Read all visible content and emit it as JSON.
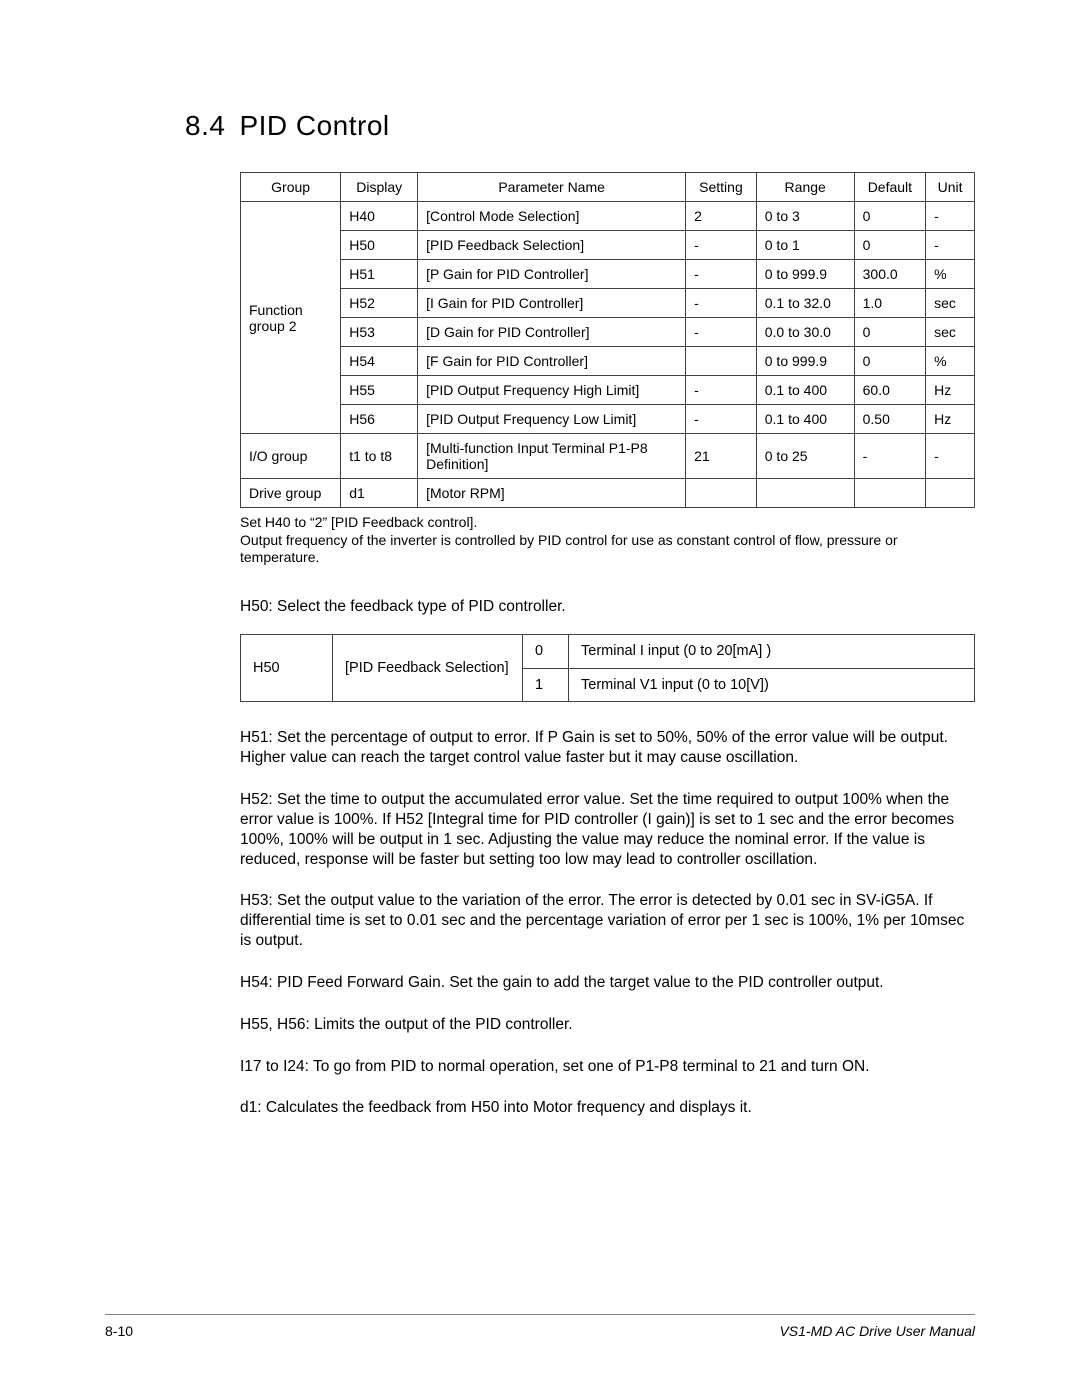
{
  "heading": {
    "number": "8.4",
    "title": "PID Control"
  },
  "params_table": {
    "columns": [
      "Group",
      "Display",
      "Parameter Name",
      "Setting",
      "Range",
      "Default",
      "Unit"
    ],
    "groups": [
      {
        "group": "Function group 2",
        "rows": [
          {
            "display": "H40",
            "name": "[Control Mode Selection]",
            "setting": "2",
            "range": "0 to 3",
            "default": "0",
            "unit": "-"
          },
          {
            "display": "H50",
            "name": "[PID Feedback Selection]",
            "setting": "-",
            "range": "0 to 1",
            "default": "0",
            "unit": "-"
          },
          {
            "display": "H51",
            "name": "[P Gain for PID Controller]",
            "setting": "-",
            "range": "0 to 999.9",
            "default": "300.0",
            "unit": "%"
          },
          {
            "display": "H52",
            "name": "[I Gain for PID Controller]",
            "setting": "-",
            "range": "0.1 to 32.0",
            "default": "1.0",
            "unit": "sec"
          },
          {
            "display": "H53",
            "name": "[D Gain for PID Controller]",
            "setting": "-",
            "range": "0.0 to 30.0",
            "default": "0",
            "unit": "sec"
          },
          {
            "display": "H54",
            "name": "[F Gain for PID Controller]",
            "setting": "",
            "range": "0 to 999.9",
            "default": "0",
            "unit": "%"
          },
          {
            "display": "H55",
            "name": "[PID Output Frequency High Limit]",
            "setting": "-",
            "range": "0.1 to 400",
            "default": "60.0",
            "unit": "Hz"
          },
          {
            "display": "H56",
            "name": "[PID Output Frequency Low Limit]",
            "setting": "-",
            "range": "0.1 to 400",
            "default": "0.50",
            "unit": "Hz"
          }
        ]
      },
      {
        "group": "I/O group",
        "rows": [
          {
            "display": "t1 to t8",
            "name": "[Multi-function Input Terminal P1-P8 Definition]",
            "setting": "21",
            "range": "0 to 25",
            "default": "-",
            "unit": "-"
          }
        ]
      },
      {
        "group": "Drive group",
        "rows": [
          {
            "display": "d1",
            "name": "[Motor RPM]",
            "setting": "",
            "range": "",
            "default": "",
            "unit": ""
          }
        ]
      }
    ],
    "note": "Set H40 to “2” [PID Feedback control].\nOutput frequency of the inverter is controlled by PID control for use as constant control of flow, pressure or temperature."
  },
  "h50_intro": "H50: Select the feedback type of PID controller.",
  "feedback_table": {
    "code": "H50",
    "name": "[PID Feedback Selection]",
    "rows": [
      {
        "val": "0",
        "desc": "Terminal I input (0 to 20[mA] )"
      },
      {
        "val": "1",
        "desc": "Terminal V1 input (0 to 10[V])"
      }
    ]
  },
  "paragraphs": [
    "H51: Set the percentage of output to error. If P Gain is set to 50%, 50% of the error value will be output. Higher value can reach the target control value faster but it may cause oscillation.",
    "H52: Set the time to output the accumulated error value. Set the time required to output 100% when the error value is 100%. If H52 [Integral time for PID controller (I gain)] is set to 1 sec and the error becomes 100%, 100% will be output in 1 sec. Adjusting the value may reduce the nominal error. If the value is reduced, response will be faster but setting too low may lead to controller oscillation.",
    "H53: Set the output value to the variation of the error. The error is detected by 0.01 sec in SV-iG5A. If differential time is set to 0.01 sec and the percentage variation of error per 1 sec is 100%, 1% per 10msec is output.",
    "H54: PID Feed Forward Gain. Set the gain to add the target value to the PID controller output.",
    "H55, H56: Limits the output of the PID controller.",
    "I17 to I24: To go from PID to normal operation, set one of P1-P8 terminal to 21 and turn ON.",
    "d1: Calculates the feedback from H50 into Motor frequency and displays it."
  ],
  "footer": {
    "left": "8-10",
    "right": "VS1-MD AC Drive User Manual"
  }
}
